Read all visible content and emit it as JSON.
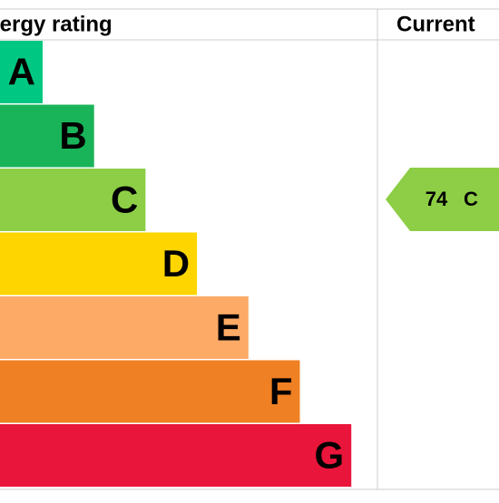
{
  "header": {
    "title": "Energy rating",
    "current": "Current"
  },
  "bands": [
    {
      "letter": "A",
      "color": "#00c781"
    },
    {
      "letter": "B",
      "color": "#19b459"
    },
    {
      "letter": "C",
      "color": "#8dce46"
    },
    {
      "letter": "D",
      "color": "#ffd500"
    },
    {
      "letter": "E",
      "color": "#fcaa65"
    },
    {
      "letter": "F",
      "color": "#ef8023"
    },
    {
      "letter": "G",
      "color": "#e9153b"
    }
  ],
  "current": {
    "value": 74,
    "band": "C",
    "color": "#8dce46"
  }
}
